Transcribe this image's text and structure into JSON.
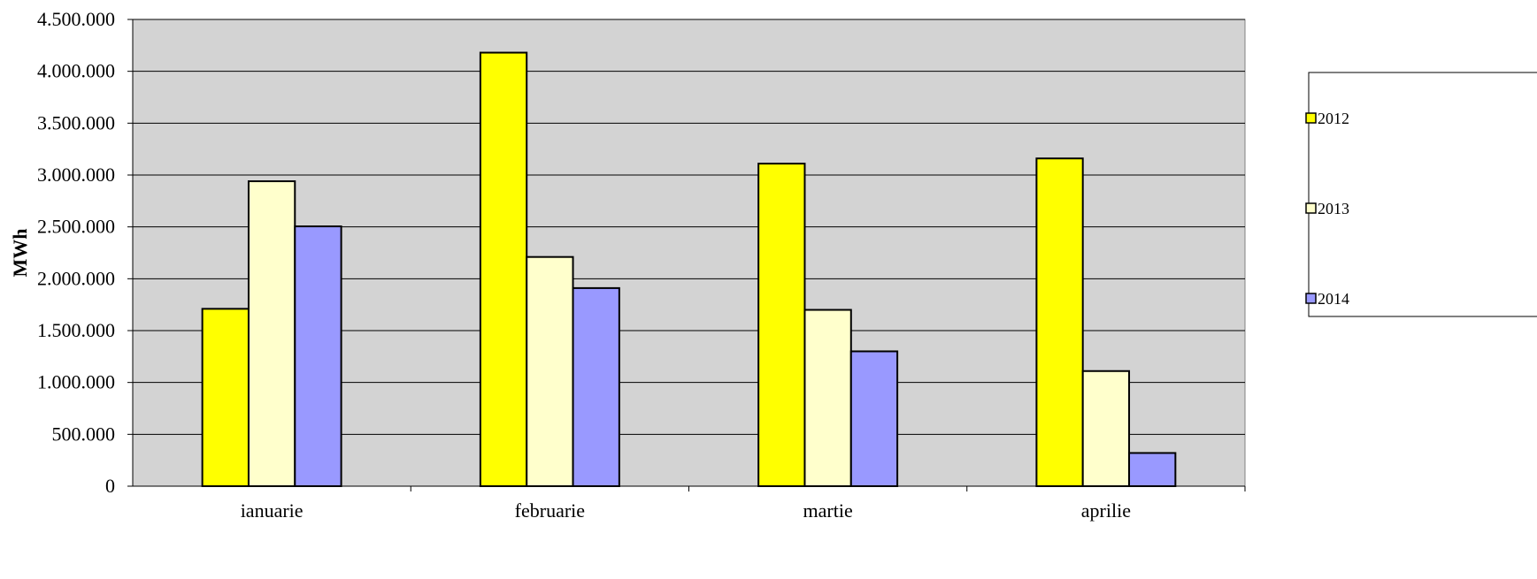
{
  "chart_data": {
    "type": "bar",
    "categories": [
      "ianuarie",
      "februarie",
      "martie",
      "aprilie"
    ],
    "series": [
      {
        "name": "2012",
        "color": "#FFFF00",
        "values": [
          1710000,
          4180000,
          3110000,
          3160000
        ]
      },
      {
        "name": "2013",
        "color": "#FFFFCC",
        "values": [
          2940000,
          2210000,
          1700000,
          1110000
        ]
      },
      {
        "name": "2014",
        "color": "#9999FF",
        "values": [
          2505000,
          1910000,
          1300000,
          320000
        ]
      }
    ],
    "ylabel": "MWh",
    "ylim": [
      0,
      4500000
    ],
    "yticks": [
      0,
      500000,
      1000000,
      1500000,
      2000000,
      2500000,
      3000000,
      3500000,
      4000000,
      4500000
    ],
    "ytick_labels": [
      "0",
      "500.000",
      "1.000.000",
      "1.500.000",
      "2.000.000",
      "2.500.000",
      "3.000.000",
      "3.500.000",
      "4.000.000",
      "4.500.000"
    ],
    "plot_background": "#D3D3D3",
    "grid": true,
    "legend_position": "right"
  }
}
